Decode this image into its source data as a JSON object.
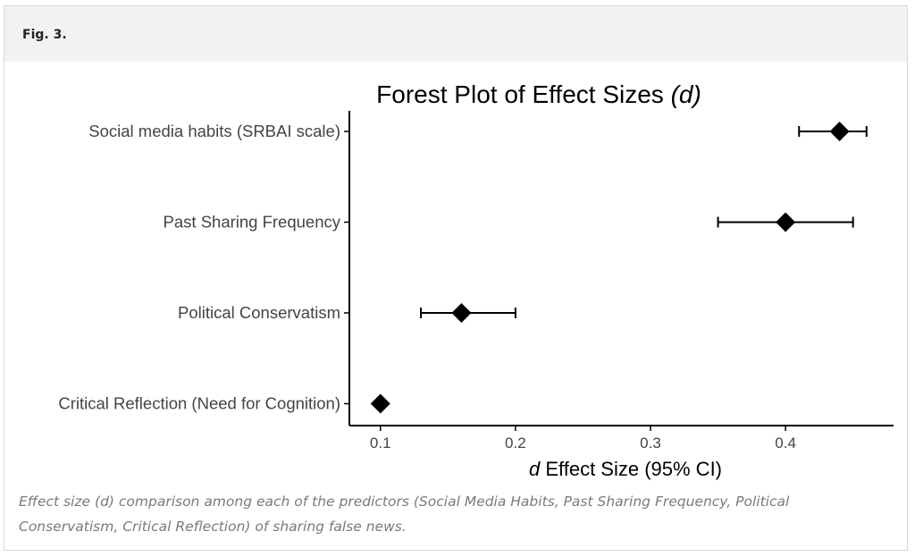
{
  "figure": {
    "label": "Fig. 3.",
    "caption": "Effect size (d) comparison among each of the predictors (Social Media Habits, Past Sharing Frequency, Political Conservatism, Critical Reflection) of sharing false news."
  },
  "chart_data": {
    "type": "forest",
    "title": "Forest Plot of Effect Sizes",
    "title_italic_suffix": "(d)",
    "xlabel_italic_prefix": "d",
    "xlabel": "Effect Size (95% CI)",
    "ylabel": "",
    "xlim": [
      0.077,
      0.48
    ],
    "x_ticks": [
      0.1,
      0.2,
      0.3,
      0.4
    ],
    "x_tick_labels": [
      "0.1",
      "0.2",
      "0.3",
      "0.4"
    ],
    "grid": false,
    "legend": "none",
    "categories": [
      "Social media habits (SRBAI scale)",
      "Past Sharing Frequency",
      "Political Conservatism",
      "Critical Reflection (Need for Cognition)"
    ],
    "estimates": [
      0.44,
      0.4,
      0.16,
      0.1
    ],
    "ci_lower": [
      0.41,
      0.35,
      0.13,
      0.1
    ],
    "ci_upper": [
      0.46,
      0.45,
      0.2,
      0.1
    ],
    "colors": {
      "mark": "#000000",
      "axis": "#000000",
      "label": "#444444"
    }
  }
}
